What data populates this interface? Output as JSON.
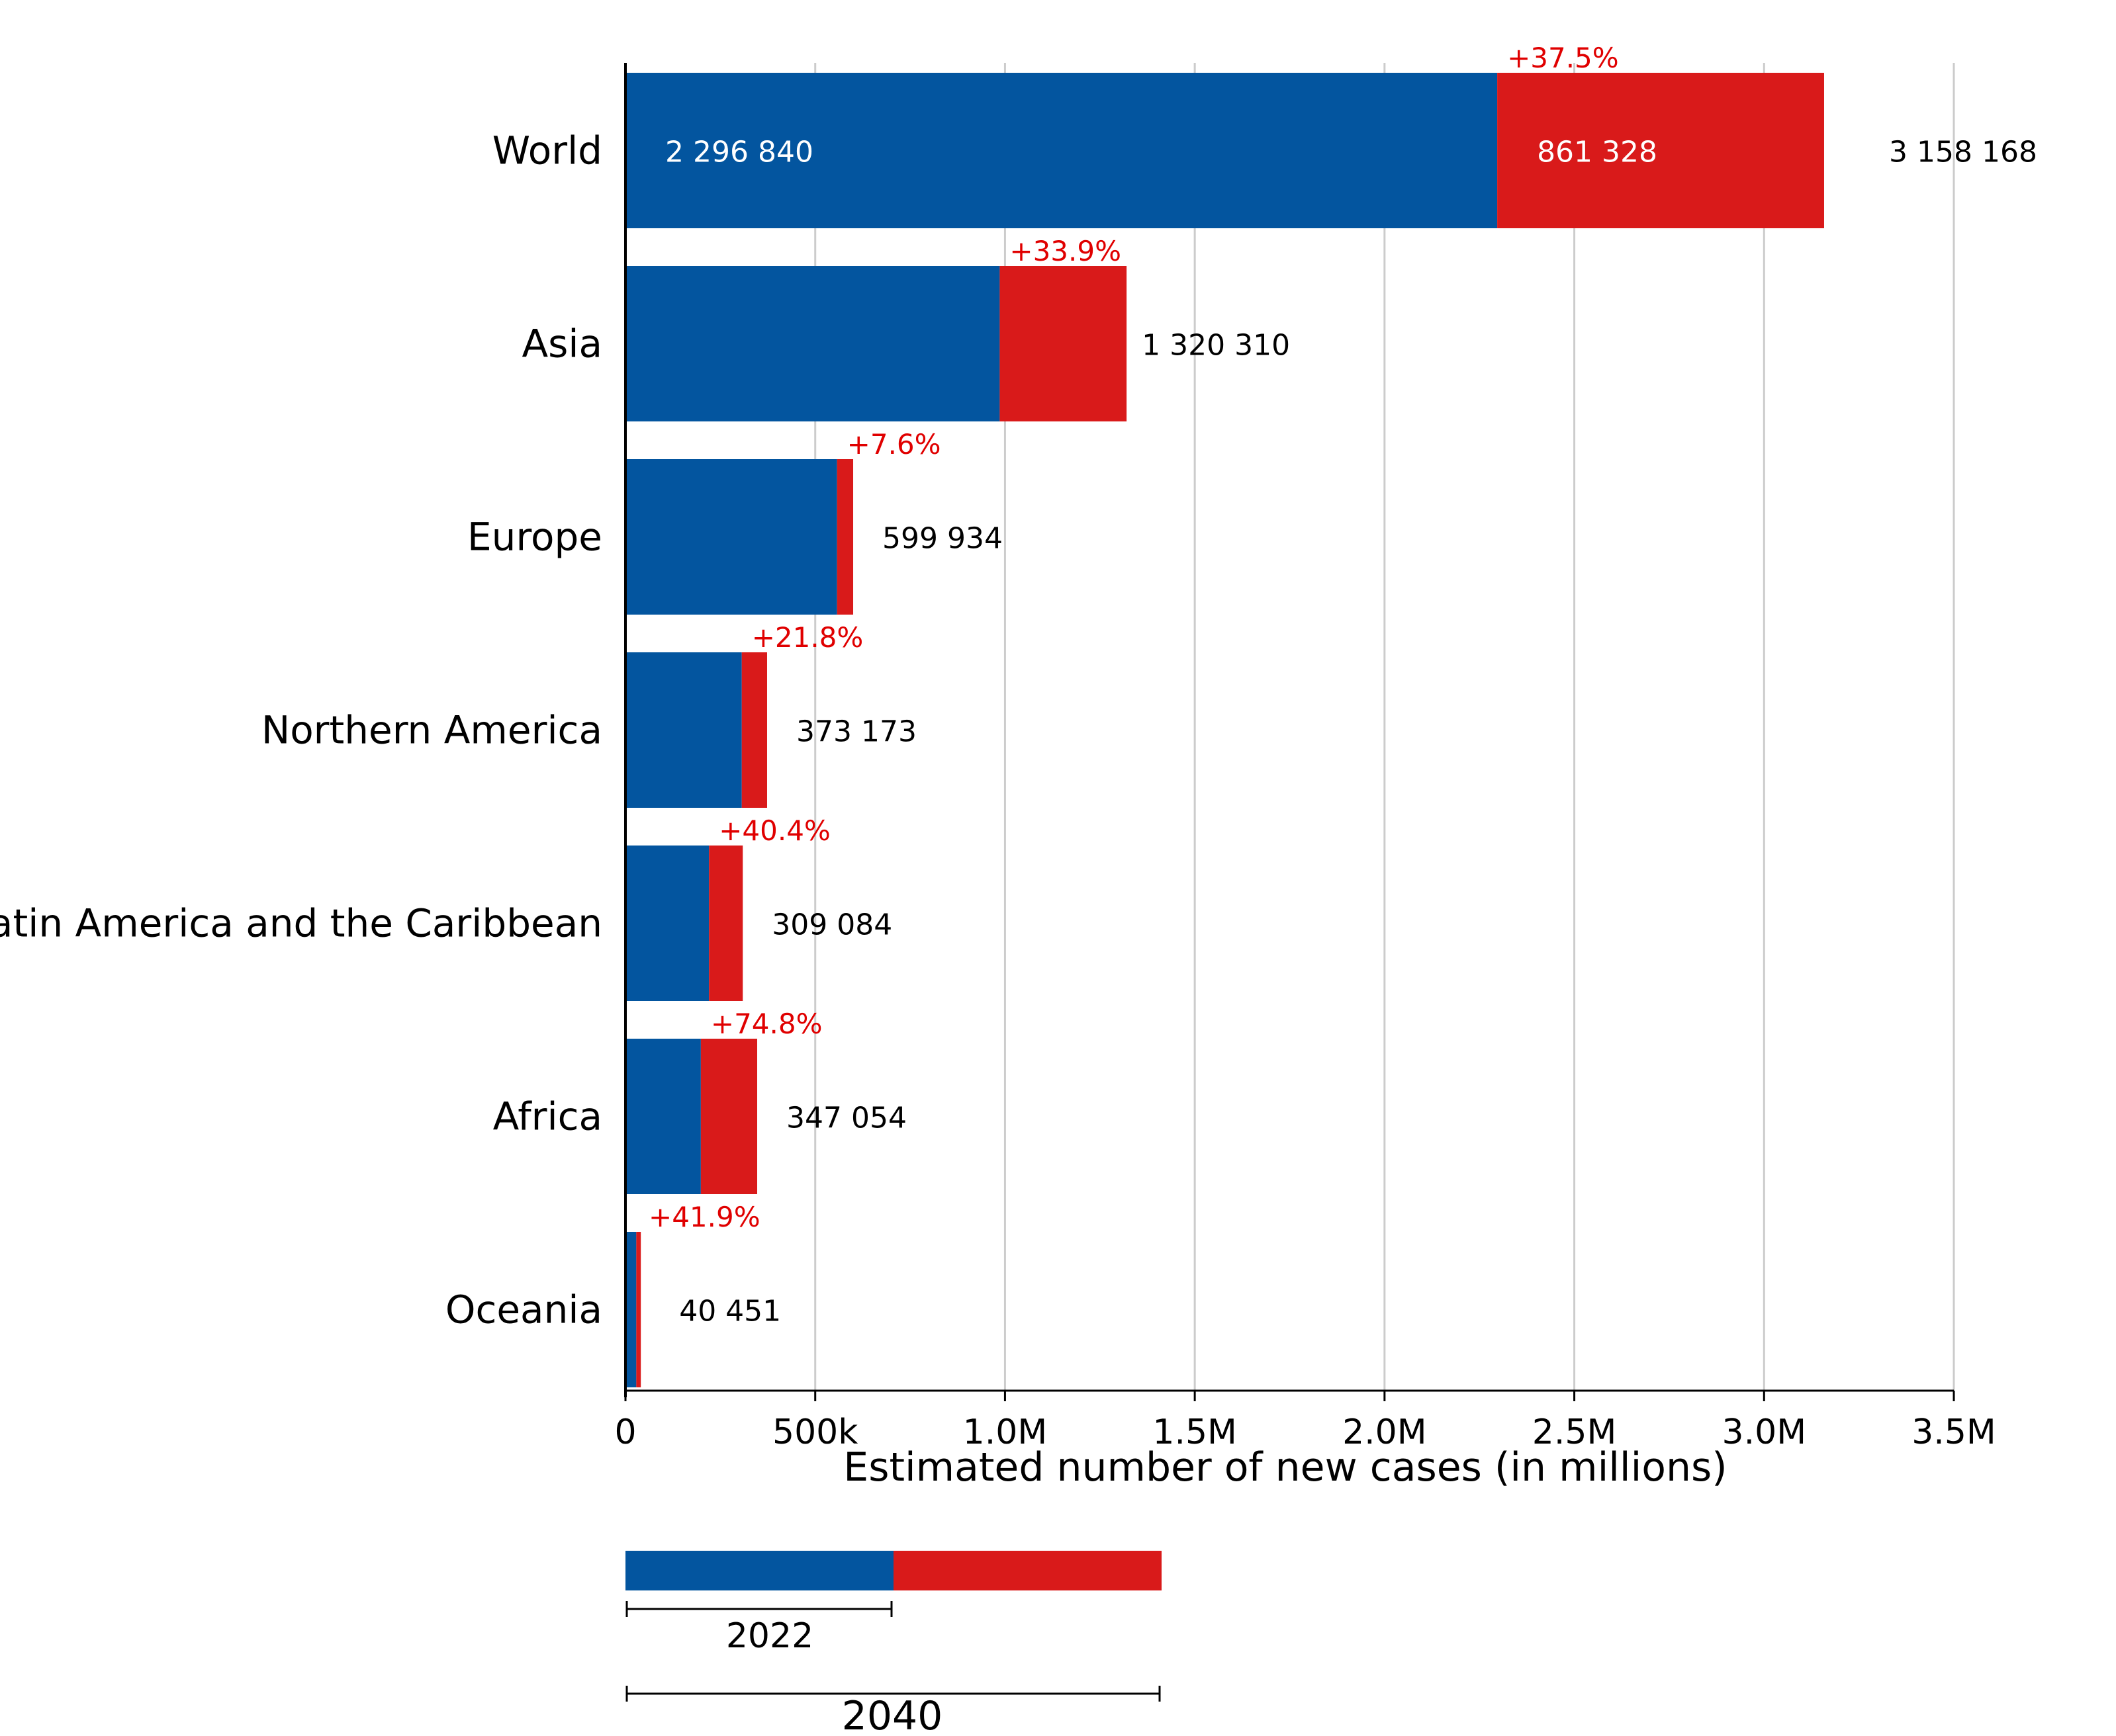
{
  "colors": {
    "base": "#03559f",
    "increase": "#d91a1a",
    "gridline": "#cccccc",
    "axis": "#000000",
    "label_dark": "#000000",
    "label_light": "#ffffff",
    "pct_text": "#e00000"
  },
  "chart_data": {
    "type": "bar",
    "orientation": "horizontal",
    "stacked": true,
    "categories": [
      "World",
      "Asia",
      "Europe",
      "Northern America",
      "Latin America and the Caribbean",
      "Africa",
      "Oceania"
    ],
    "series": [
      {
        "name": "2022",
        "values": [
          2296840,
          986000,
          557500,
          306400,
          220100,
          198600,
          28500
        ]
      },
      {
        "name": "2040",
        "values": [
          861328,
          334310,
          42434,
          66773,
          88984,
          148454,
          11951
        ]
      }
    ],
    "totals": [
      3158168,
      1320310,
      599934,
      373173,
      309084,
      347054,
      40451
    ],
    "total_labels": [
      "3 158 168",
      "1 320 310",
      "599 934",
      "373 173",
      "309 084",
      "347 054",
      "40 451"
    ],
    "pct_labels": [
      "+37.5%",
      "+33.9%",
      "+7.6%",
      "+21.8%",
      "+40.4%",
      "+74.8%",
      "+41.9%"
    ],
    "inner_labels": {
      "base": "2 296 840",
      "increase": "861 328"
    },
    "xlabel": "Estimated number of new cases (in millions)",
    "ylabel": "",
    "xlim": [
      0,
      3500000
    ],
    "xticks": [
      0,
      500000,
      1000000,
      1500000,
      2000000,
      2500000,
      3000000,
      3500000
    ],
    "xtick_labels": [
      "0",
      "500k",
      "1.0M",
      "1.5M",
      "2.0M",
      "2.5M",
      "3.0M",
      "3.5M"
    ],
    "grid": true,
    "legend": {
      "position": "bottom-left",
      "base_label": "2022",
      "total_label": "2040"
    }
  }
}
